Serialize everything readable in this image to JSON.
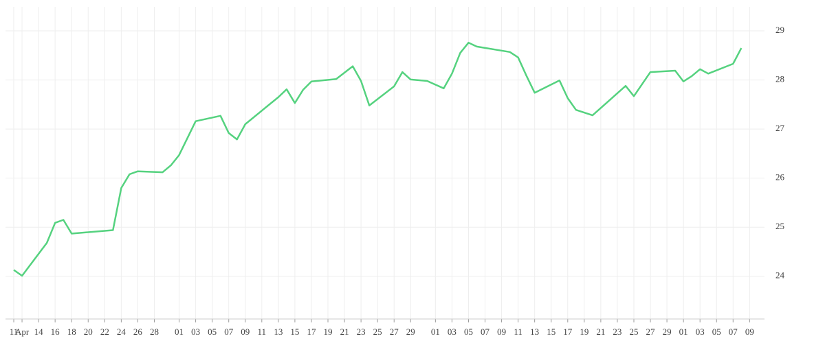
{
  "chart_data": {
    "type": "line",
    "x": [
      0,
      1,
      4,
      5,
      6,
      7,
      12,
      13,
      14,
      15,
      18,
      19,
      20,
      22,
      25,
      26,
      27,
      28,
      32,
      33,
      34,
      35,
      36,
      39,
      41,
      42,
      43,
      46,
      47,
      48,
      50,
      52,
      53,
      54,
      55,
      56,
      60,
      61,
      62,
      63,
      66,
      67,
      68,
      70,
      74,
      75,
      77,
      80,
      81,
      82,
      83,
      84,
      87,
      88
    ],
    "series": [
      {
        "color": "#55d27f",
        "values": [
          24.13,
          24.01,
          24.68,
          25.09,
          25.15,
          24.87,
          24.94,
          25.8,
          26.08,
          26.14,
          26.12,
          26.26,
          26.47,
          27.16,
          27.27,
          26.92,
          26.79,
          27.1,
          27.65,
          27.81,
          27.53,
          27.8,
          27.97,
          28.02,
          28.28,
          27.98,
          27.48,
          27.87,
          28.16,
          28.01,
          27.98,
          27.83,
          28.13,
          28.55,
          28.76,
          28.68,
          28.57,
          28.46,
          28.09,
          27.74,
          27.99,
          27.63,
          27.39,
          27.28,
          27.88,
          27.67,
          28.16,
          28.19,
          27.97,
          28.08,
          28.22,
          28.13,
          28.33,
          28.65
        ]
      }
    ],
    "xlim": [
      -1,
      90.8
    ],
    "xticks": [
      {
        "value": 0,
        "label": "11"
      },
      {
        "value": 1,
        "label": "Apr"
      },
      {
        "value": 3,
        "label": "14"
      },
      {
        "value": 5,
        "label": "16"
      },
      {
        "value": 7,
        "label": "18"
      },
      {
        "value": 9,
        "label": "20"
      },
      {
        "value": 11,
        "label": "22"
      },
      {
        "value": 13,
        "label": "24"
      },
      {
        "value": 15,
        "label": "26"
      },
      {
        "value": 17,
        "label": "28"
      },
      {
        "value": 20,
        "label": "01"
      },
      {
        "value": 22,
        "label": "03"
      },
      {
        "value": 24,
        "label": "05"
      },
      {
        "value": 26,
        "label": "07"
      },
      {
        "value": 28,
        "label": "09"
      },
      {
        "value": 30,
        "label": "11"
      },
      {
        "value": 32,
        "label": "13"
      },
      {
        "value": 34,
        "label": "15"
      },
      {
        "value": 36,
        "label": "17"
      },
      {
        "value": 38,
        "label": "19"
      },
      {
        "value": 40,
        "label": "21"
      },
      {
        "value": 42,
        "label": "23"
      },
      {
        "value": 44,
        "label": "25"
      },
      {
        "value": 46,
        "label": "27"
      },
      {
        "value": 48,
        "label": "29"
      },
      {
        "value": 51,
        "label": "01"
      },
      {
        "value": 53,
        "label": "03"
      },
      {
        "value": 55,
        "label": "05"
      },
      {
        "value": 57,
        "label": "07"
      },
      {
        "value": 59,
        "label": "09"
      },
      {
        "value": 61,
        "label": "11"
      },
      {
        "value": 63,
        "label": "13"
      },
      {
        "value": 65,
        "label": "15"
      },
      {
        "value": 67,
        "label": "17"
      },
      {
        "value": 69,
        "label": "19"
      },
      {
        "value": 71,
        "label": "21"
      },
      {
        "value": 73,
        "label": "23"
      },
      {
        "value": 75,
        "label": "25"
      },
      {
        "value": 77,
        "label": "27"
      },
      {
        "value": 79,
        "label": "29"
      },
      {
        "value": 81,
        "label": "01"
      },
      {
        "value": 83,
        "label": "03"
      },
      {
        "value": 85,
        "label": "05"
      },
      {
        "value": 87,
        "label": "07"
      },
      {
        "value": 89,
        "label": "09"
      }
    ],
    "ylim": [
      23.13,
      29.49
    ],
    "yticks": [
      24,
      25,
      26,
      27,
      28,
      29
    ],
    "grid": true
  }
}
